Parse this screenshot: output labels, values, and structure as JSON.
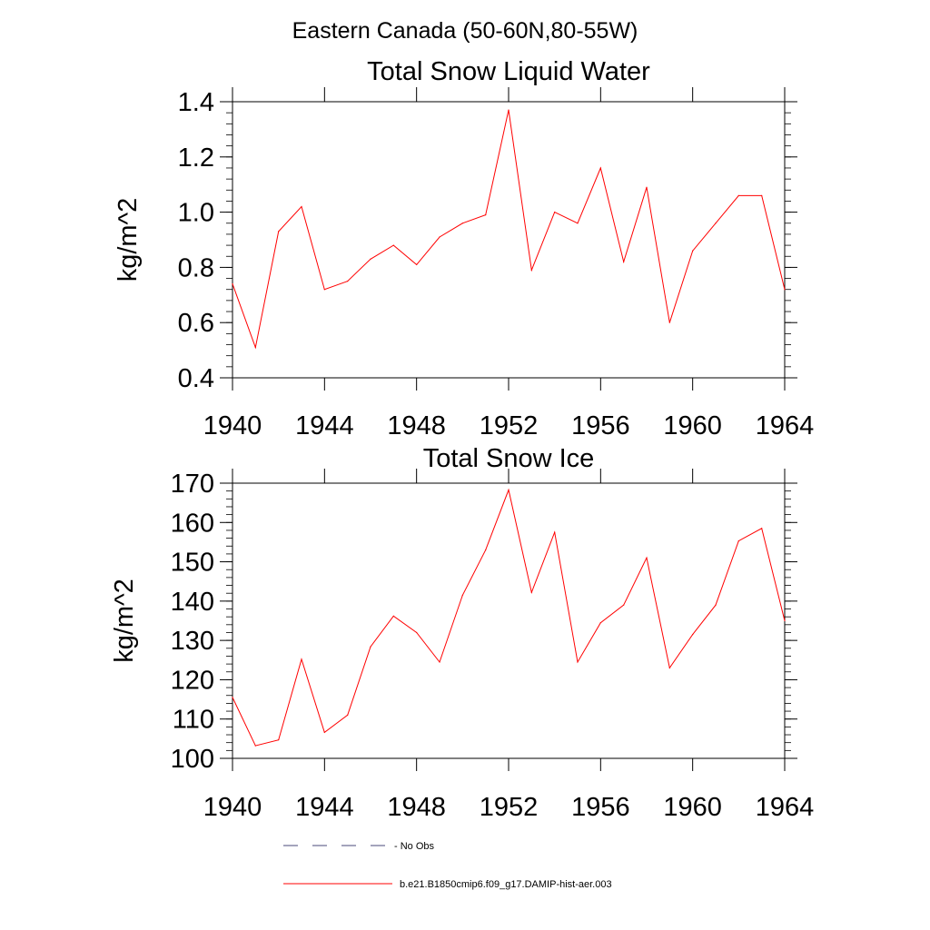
{
  "page_title": "Eastern Canada (50-60N,80-55W)",
  "colors": {
    "series": "#ff0000",
    "no_obs": "#4a4a7a",
    "axis": "#000000"
  },
  "chart_data": [
    {
      "type": "line",
      "title": "Total Snow Liquid Water",
      "xlabel": "",
      "ylabel": "kg/m^2",
      "xlim": [
        1940,
        1964
      ],
      "ylim": [
        0.4,
        1.4
      ],
      "x_ticks": [
        1940,
        1944,
        1948,
        1952,
        1956,
        1960,
        1964
      ],
      "y_ticks": [
        "0.4",
        "0.6",
        "0.8",
        "1.0",
        "1.2",
        "1.4"
      ],
      "y_tick_values": [
        0.4,
        0.6,
        0.8,
        1.0,
        1.2,
        1.4
      ],
      "grid": false,
      "series": [
        {
          "name": "b.e21.B1850cmip6.f09_g17.DAMIP-hist-aer.003",
          "x": [
            1940,
            1941,
            1942,
            1943,
            1944,
            1945,
            1946,
            1947,
            1948,
            1949,
            1950,
            1951,
            1952,
            1953,
            1954,
            1955,
            1956,
            1957,
            1958,
            1959,
            1960,
            1961,
            1962,
            1963,
            1964
          ],
          "values": [
            0.74,
            0.51,
            0.93,
            1.02,
            0.72,
            0.75,
            0.83,
            0.88,
            0.81,
            0.91,
            0.96,
            0.99,
            1.37,
            0.79,
            1.0,
            0.96,
            1.16,
            0.82,
            1.09,
            0.6,
            0.86,
            0.96,
            1.06,
            1.06,
            0.72
          ]
        }
      ]
    },
    {
      "type": "line",
      "title": "Total Snow Ice",
      "xlabel": "",
      "ylabel": "kg/m^2",
      "xlim": [
        1940,
        1964
      ],
      "ylim": [
        100,
        170
      ],
      "x_ticks": [
        1940,
        1944,
        1948,
        1952,
        1956,
        1960,
        1964
      ],
      "y_ticks": [
        "100",
        "110",
        "120",
        "130",
        "140",
        "150",
        "160",
        "170"
      ],
      "y_tick_values": [
        100,
        110,
        120,
        130,
        140,
        150,
        160,
        170
      ],
      "grid": false,
      "series": [
        {
          "name": "b.e21.B1850cmip6.f09_g17.DAMIP-hist-aer.003",
          "x": [
            1940,
            1941,
            1942,
            1943,
            1944,
            1945,
            1946,
            1947,
            1948,
            1949,
            1950,
            1951,
            1952,
            1953,
            1954,
            1955,
            1956,
            1957,
            1958,
            1959,
            1960,
            1961,
            1962,
            1963,
            1964
          ],
          "values": [
            115.5,
            103.2,
            104.7,
            125.2,
            106.6,
            111.0,
            128.4,
            136.2,
            132.0,
            124.5,
            141.5,
            153.0,
            168.3,
            142.2,
            157.5,
            124.5,
            134.5,
            139.0,
            151.0,
            123.0,
            131.5,
            139.0,
            155.3,
            158.5,
            135.0
          ]
        }
      ]
    }
  ],
  "legend": {
    "items": [
      {
        "label": "No Obs",
        "style": "dashed"
      },
      {
        "label": "b.e21.B1850cmip6.f09_g17.DAMIP-hist-aer.003",
        "style": "solid"
      }
    ]
  }
}
